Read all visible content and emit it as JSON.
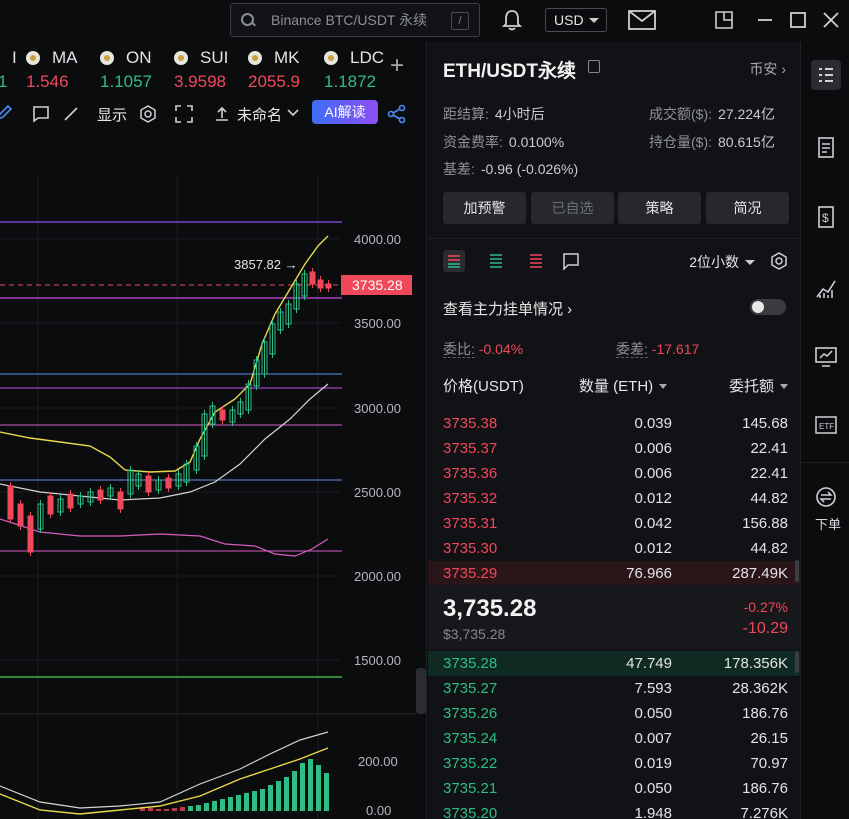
{
  "topbar": {
    "search_placeholder": "Binance BTC/USDT 永续",
    "search_shortcut": "/",
    "currency": "USD"
  },
  "tickers": [
    {
      "symbol": "I",
      "price": "1",
      "color": "green"
    },
    {
      "symbol": "MA",
      "price": "1.546",
      "color": "red"
    },
    {
      "symbol": "ON",
      "price": "1.1057",
      "color": "green"
    },
    {
      "symbol": "SUI",
      "price": "3.9598",
      "color": "red"
    },
    {
      "symbol": "MK",
      "price": "2055.9",
      "color": "red"
    },
    {
      "symbol": "LDC",
      "price": "1.1872",
      "color": "green"
    }
  ],
  "chart_toolbar": {
    "display_label": "显示",
    "template_label": "未命名",
    "ai_label": "AI解读"
  },
  "chart": {
    "price_axis": [
      "4000.00",
      "3500.00",
      "3000.00",
      "2500.00",
      "2000.00",
      "1500.00"
    ],
    "current_price_tag": "3735.28",
    "high_marker": "3857.82 →",
    "volume_axis": [
      "200.00",
      "0.00"
    ]
  },
  "panel": {
    "title": "ETH/USDT永续",
    "exchange": "币安",
    "funding_countdown_label": "距结算:",
    "funding_countdown_value": "4小时后",
    "funding_rate_label": "资金费率:",
    "funding_rate_value": "0.0100%",
    "basis_label": "基差:",
    "basis_value": "-0.96 (-0.026%)",
    "volume_label": "成交额($):",
    "volume_value": "27.224亿",
    "oi_label": "持仓量($):",
    "oi_value": "80.615亿",
    "buttons": [
      "加预警",
      "已自选",
      "策略",
      "简况"
    ],
    "decimal_label": "2位小数",
    "main_orders_label": "查看主力挂单情况",
    "ratio_label": "委比:",
    "ratio_value": "-0.04%",
    "diff_label": "委差:",
    "diff_value": "-17.617",
    "col_price": "价格(USDT)",
    "col_qty": "数量 (ETH)",
    "col_total": "委托额",
    "asks": [
      {
        "p": "3735.38",
        "q": "0.039",
        "t": "145.68"
      },
      {
        "p": "3735.37",
        "q": "0.006",
        "t": "22.41"
      },
      {
        "p": "3735.36",
        "q": "0.006",
        "t": "22.41"
      },
      {
        "p": "3735.32",
        "q": "0.012",
        "t": "44.82"
      },
      {
        "p": "3735.31",
        "q": "0.042",
        "t": "156.88"
      },
      {
        "p": "3735.30",
        "q": "0.012",
        "t": "44.82"
      },
      {
        "p": "3735.29",
        "q": "76.966",
        "t": "287.49K"
      }
    ],
    "last_price": "3,735.28",
    "last_price_usd": "$3,735.28",
    "change_pct": "-0.27%",
    "change_abs": "-10.29",
    "bids": [
      {
        "p": "3735.28",
        "q": "47.749",
        "t": "178.356K"
      },
      {
        "p": "3735.27",
        "q": "7.593",
        "t": "28.362K"
      },
      {
        "p": "3735.26",
        "q": "0.050",
        "t": "186.76"
      },
      {
        "p": "3735.24",
        "q": "0.007",
        "t": "26.15"
      },
      {
        "p": "3735.22",
        "q": "0.019",
        "t": "70.97"
      },
      {
        "p": "3735.21",
        "q": "0.050",
        "t": "186.76"
      },
      {
        "p": "3735.20",
        "q": "1.948",
        "t": "7.276K"
      }
    ]
  },
  "sidebar": {
    "order_label": "下单"
  }
}
